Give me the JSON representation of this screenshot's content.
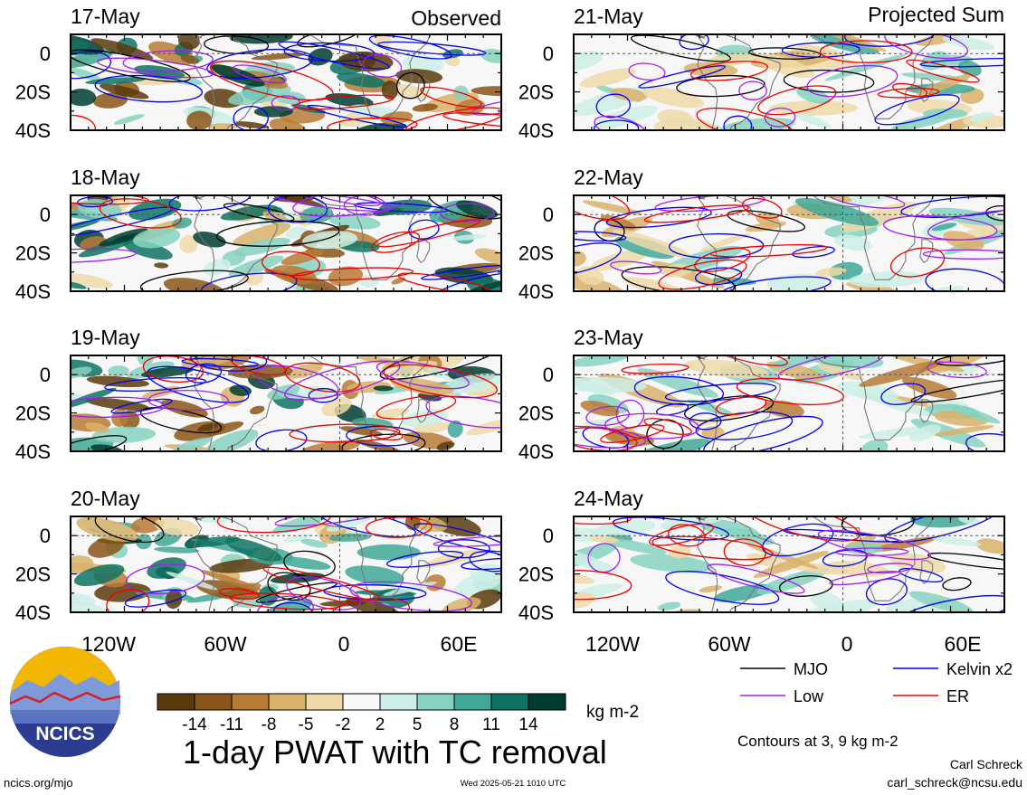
{
  "panels_left": {
    "header_right": "Observed",
    "dates": [
      "17-May",
      "18-May",
      "19-May",
      "20-May"
    ]
  },
  "panels_right": {
    "header_right": "Projected Sum",
    "dates": [
      "21-May",
      "22-May",
      "23-May",
      "24-May"
    ]
  },
  "axes": {
    "lat_ticks": [
      "0",
      "20S",
      "40S"
    ],
    "lon_ticks": [
      "120W",
      "60W",
      "0",
      "60E"
    ]
  },
  "colorbar": {
    "tick_labels": [
      "-14",
      "-11",
      "-8",
      "-5",
      "-2",
      "2",
      "5",
      "8",
      "11",
      "14"
    ],
    "colors": [
      "#5a3a0d",
      "#8a5518",
      "#b87a35",
      "#d9b26a",
      "#efd9a9",
      "#f7f7f7",
      "#cdeee6",
      "#86d2c1",
      "#3fa896",
      "#0e7363",
      "#003c30"
    ],
    "units": "kg m-2"
  },
  "legend": {
    "items": [
      {
        "label": "MJO",
        "color": "#000000"
      },
      {
        "label": "Kelvin x2",
        "color": "#0000ee"
      },
      {
        "label": "Low",
        "color": "#a020f0"
      },
      {
        "label": "ER",
        "color": "#ee0000"
      }
    ],
    "contours_note": "Contours at 3, 9 kg m-2"
  },
  "main_title": "1-day PWAT with TC removal",
  "logo_text": "NCICS",
  "footer": {
    "left": "ncics.org/mjo",
    "center": "Wed 2025-05-21 1010 UTC",
    "author": "Carl Schreck",
    "email": "carl_schreck@ncsu.edu"
  },
  "chart_data": {
    "type": "heatmap",
    "title": "1-day PWAT with TC removal",
    "variable": "Precipitable water anomaly (TC removed)",
    "units": "kg m-2",
    "columns": [
      "Observed",
      "Projected Sum"
    ],
    "dates_observed": [
      "17-May",
      "18-May",
      "19-May",
      "20-May"
    ],
    "dates_projected": [
      "21-May",
      "22-May",
      "23-May",
      "24-May"
    ],
    "y_ticks": [
      "0",
      "20S",
      "40S"
    ],
    "x_ticks": [
      "120W",
      "60W",
      "0",
      "60E"
    ],
    "lat_range": [
      -40,
      10
    ],
    "lon_range": [
      -150,
      90
    ],
    "color_levels": [
      -14,
      -11,
      -8,
      -5,
      -2,
      2,
      5,
      8,
      11,
      14
    ],
    "contour_levels": [
      3,
      9
    ],
    "contour_series": [
      "MJO",
      "Kelvin x2",
      "Low",
      "ER"
    ]
  }
}
